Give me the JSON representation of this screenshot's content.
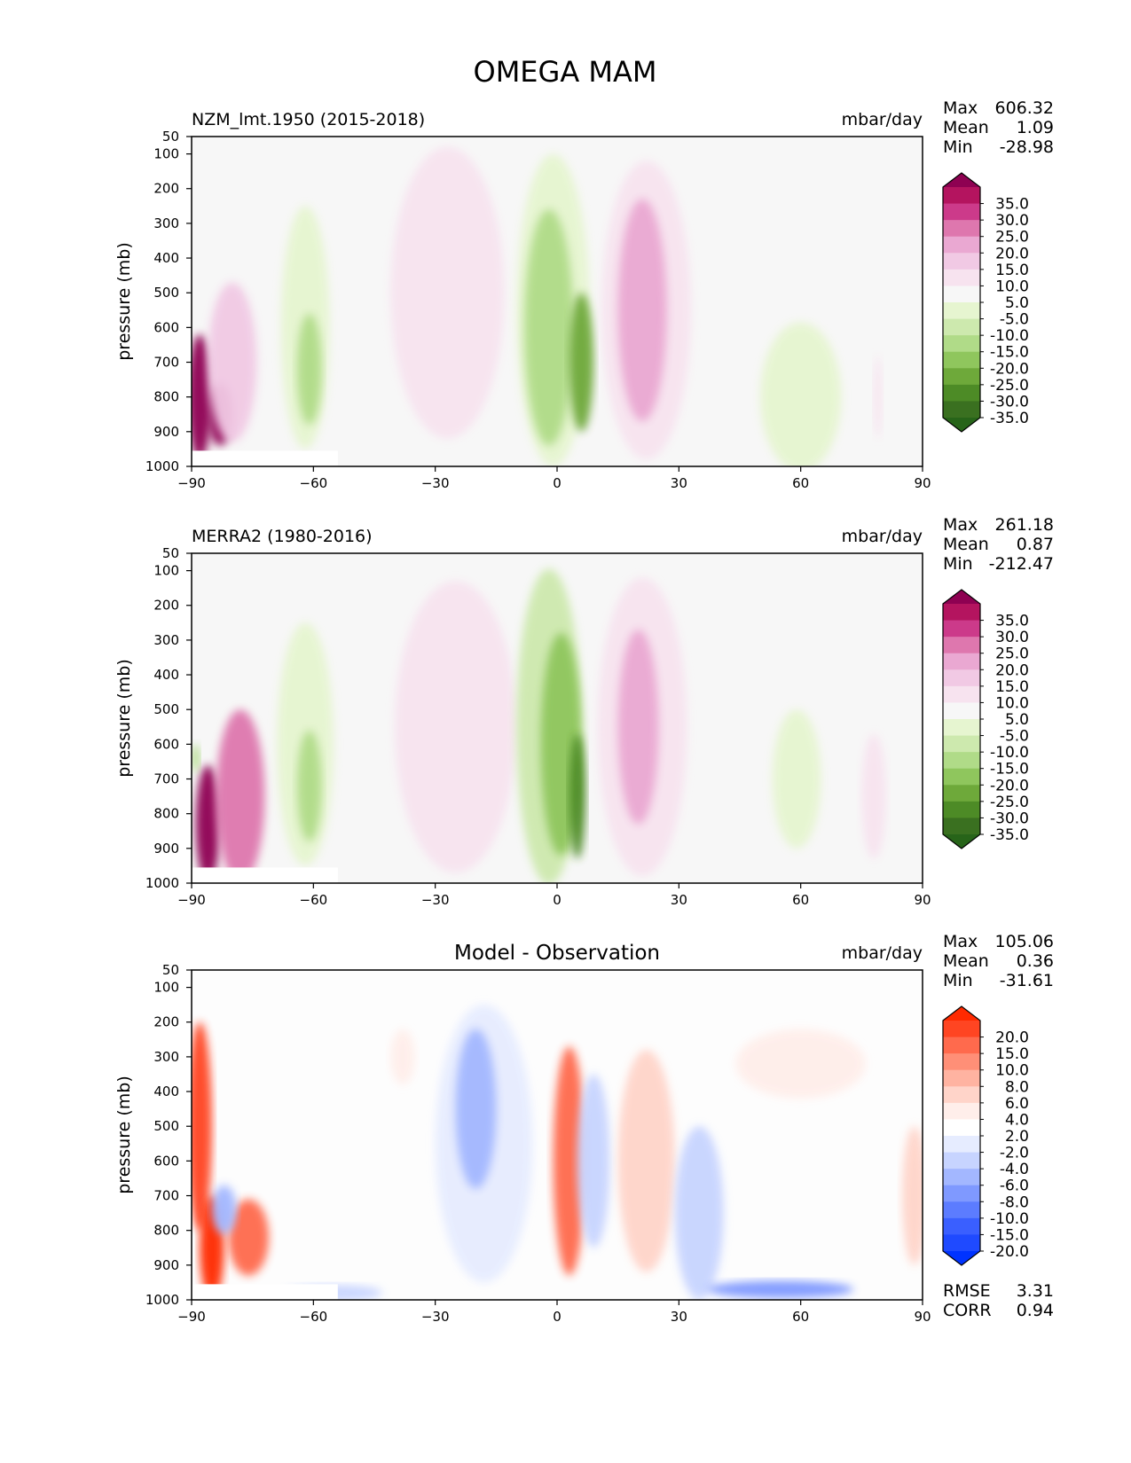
{
  "figure_title": "OMEGA MAM",
  "chart_data": [
    {
      "type": "heatmap",
      "title": "NZM_lmt.1950 (2015-2018)",
      "units": "mbar/day",
      "ylabel": "pressure (mb)",
      "xlim": [
        -90,
        90
      ],
      "ylim": [
        1000,
        50
      ],
      "xticks": [
        "−90",
        "−60",
        "−30",
        "0",
        "30",
        "60",
        "90"
      ],
      "yticks": [
        "50",
        "100",
        "200",
        "300",
        "400",
        "500",
        "600",
        "700",
        "800",
        "900",
        "1000"
      ],
      "stats": {
        "max_label": "Max",
        "max": "606.32",
        "mean_label": "Mean",
        "mean": "1.09",
        "min_label": "Min",
        "min": "-28.98"
      },
      "colorbar": {
        "labels": [
          "35.0",
          "30.0",
          "25.0",
          "20.0",
          "15.0",
          "10.0",
          "5.0",
          "-5.0",
          "-10.0",
          "-15.0",
          "-20.0",
          "-25.0",
          "-30.0",
          "-35.0"
        ],
        "colors": [
          "#8e0152",
          "#b4145f",
          "#cc3a8a",
          "#de77ae",
          "#eaa8d2",
          "#f1c9e4",
          "#f7e3ef",
          "#f7f7f7",
          "#e6f5d0",
          "#cde9ae",
          "#b0db88",
          "#8fc65d",
          "#6ea93a",
          "#4d8b26",
          "#3a7020",
          "#276419"
        ]
      },
      "blobs": [
        {
          "x": -88,
          "y": 800,
          "rx": 3,
          "ry": 180,
          "v": 35
        },
        {
          "x": -83,
          "y": 850,
          "rx": 3,
          "ry": 90,
          "v": 35
        },
        {
          "x": -80,
          "y": 700,
          "rx": 6,
          "ry": 230,
          "v": 10
        },
        {
          "x": -62,
          "y": 600,
          "rx": 6,
          "ry": 350,
          "v": -10
        },
        {
          "x": -61,
          "y": 720,
          "rx": 3,
          "ry": 160,
          "v": -18
        },
        {
          "x": -27,
          "y": 500,
          "rx": 14,
          "ry": 420,
          "v": 8
        },
        {
          "x": -1,
          "y": 550,
          "rx": 9,
          "ry": 450,
          "v": -10
        },
        {
          "x": -2,
          "y": 600,
          "rx": 6,
          "ry": 340,
          "v": -20
        },
        {
          "x": 6,
          "y": 700,
          "rx": 3,
          "ry": 200,
          "v": -30
        },
        {
          "x": 22,
          "y": 550,
          "rx": 11,
          "ry": 430,
          "v": 8
        },
        {
          "x": 21,
          "y": 550,
          "rx": 6,
          "ry": 320,
          "v": 18
        },
        {
          "x": 60,
          "y": 800,
          "rx": 10,
          "ry": 230,
          "v": -6
        },
        {
          "x": 79,
          "y": 800,
          "rx": 1,
          "ry": 120,
          "v": 7
        }
      ]
    },
    {
      "type": "heatmap",
      "title": "MERRA2 (1980-2016)",
      "units": "mbar/day",
      "ylabel": "pressure (mb)",
      "xlim": [
        -90,
        90
      ],
      "ylim": [
        1000,
        50
      ],
      "xticks": [
        "−90",
        "−60",
        "−30",
        "0",
        "30",
        "60",
        "90"
      ],
      "yticks": [
        "50",
        "100",
        "200",
        "300",
        "400",
        "500",
        "600",
        "700",
        "800",
        "900",
        "1000"
      ],
      "stats": {
        "max_label": "Max",
        "max": "261.18",
        "mean_label": "Mean",
        "mean": "0.87",
        "min_label": "Min",
        "min": "-212.47"
      },
      "colorbar": {
        "labels": [
          "35.0",
          "30.0",
          "25.0",
          "20.0",
          "15.0",
          "10.0",
          "5.0",
          "-5.0",
          "-10.0",
          "-15.0",
          "-20.0",
          "-25.0",
          "-30.0",
          "-35.0"
        ],
        "colors": [
          "#8e0152",
          "#b4145f",
          "#cc3a8a",
          "#de77ae",
          "#eaa8d2",
          "#f1c9e4",
          "#f7e3ef",
          "#f7f7f7",
          "#e6f5d0",
          "#cde9ae",
          "#b0db88",
          "#8fc65d",
          "#6ea93a",
          "#4d8b26",
          "#3a7020",
          "#276419"
        ]
      },
      "blobs": [
        {
          "x": -86,
          "y": 830,
          "rx": 3,
          "ry": 170,
          "v": 35
        },
        {
          "x": -78,
          "y": 750,
          "rx": 6,
          "ry": 250,
          "v": 20
        },
        {
          "x": -89,
          "y": 640,
          "rx": 1,
          "ry": 40,
          "v": -20
        },
        {
          "x": -62,
          "y": 600,
          "rx": 7,
          "ry": 350,
          "v": -10
        },
        {
          "x": -61,
          "y": 720,
          "rx": 3,
          "ry": 160,
          "v": -20
        },
        {
          "x": -25,
          "y": 550,
          "rx": 15,
          "ry": 420,
          "v": 8
        },
        {
          "x": -2,
          "y": 550,
          "rx": 8,
          "ry": 460,
          "v": -12
        },
        {
          "x": 1,
          "y": 600,
          "rx": 5,
          "ry": 320,
          "v": -22
        },
        {
          "x": 5,
          "y": 750,
          "rx": 2,
          "ry": 180,
          "v": -32
        },
        {
          "x": 21,
          "y": 550,
          "rx": 11,
          "ry": 430,
          "v": 8
        },
        {
          "x": 20,
          "y": 550,
          "rx": 5,
          "ry": 280,
          "v": 18
        },
        {
          "x": 59,
          "y": 700,
          "rx": 6,
          "ry": 200,
          "v": -6
        },
        {
          "x": 78,
          "y": 750,
          "rx": 3,
          "ry": 180,
          "v": 6
        }
      ]
    },
    {
      "type": "heatmap",
      "title": "Model - Observation",
      "units": "mbar/day",
      "ylabel": "pressure (mb)",
      "xlim": [
        -90,
        90
      ],
      "ylim": [
        1000,
        50
      ],
      "xticks": [
        "−90",
        "−60",
        "−30",
        "0",
        "30",
        "60",
        "90"
      ],
      "yticks": [
        "50",
        "100",
        "200",
        "300",
        "400",
        "500",
        "600",
        "700",
        "800",
        "900",
        "1000"
      ],
      "stats": {
        "max_label": "Max",
        "max": "105.06",
        "mean_label": "Mean",
        "mean": "0.36",
        "min_label": "Min",
        "min": "-31.61"
      },
      "metrics": {
        "rmse_label": "RMSE",
        "rmse": "3.31",
        "corr_label": "CORR",
        "corr": "0.94"
      },
      "colorbar": {
        "labels": [
          "20.0",
          "15.0",
          "10.0",
          "8.0",
          "6.0",
          "4.0",
          "2.0",
          "-2.0",
          "-4.0",
          "-6.0",
          "-8.0",
          "-10.0",
          "-15.0",
          "-20.0"
        ],
        "colors": [
          "#ff2a00",
          "#ff4522",
          "#ff6a4d",
          "#ff8f77",
          "#ffb3a1",
          "#ffd4c9",
          "#ffeeea",
          "#ffffff",
          "#e6ecff",
          "#c7d4ff",
          "#a3b7ff",
          "#7f99ff",
          "#5c7cff",
          "#3a5fff",
          "#1f4aff",
          "#0033ff"
        ]
      },
      "blobs": [
        {
          "x": -88,
          "y": 500,
          "rx": 3,
          "ry": 300,
          "v": 15
        },
        {
          "x": -85,
          "y": 850,
          "rx": 3,
          "ry": 150,
          "v": 20
        },
        {
          "x": -76,
          "y": 820,
          "rx": 5,
          "ry": 110,
          "v": 14
        },
        {
          "x": -82,
          "y": 740,
          "rx": 3,
          "ry": 70,
          "v": -8
        },
        {
          "x": -18,
          "y": 550,
          "rx": 12,
          "ry": 400,
          "v": -4
        },
        {
          "x": -20,
          "y": 450,
          "rx": 5,
          "ry": 230,
          "v": -7
        },
        {
          "x": 3,
          "y": 600,
          "rx": 4,
          "ry": 330,
          "v": 10
        },
        {
          "x": 9,
          "y": 600,
          "rx": 4,
          "ry": 250,
          "v": -5
        },
        {
          "x": 22,
          "y": 600,
          "rx": 7,
          "ry": 320,
          "v": 5
        },
        {
          "x": 35,
          "y": 750,
          "rx": 6,
          "ry": 250,
          "v": -5
        },
        {
          "x": 55,
          "y": 970,
          "rx": 18,
          "ry": 25,
          "v": -10
        },
        {
          "x": 60,
          "y": 320,
          "rx": 16,
          "ry": 100,
          "v": 3
        },
        {
          "x": 88,
          "y": 700,
          "rx": 3,
          "ry": 200,
          "v": 4
        },
        {
          "x": -55,
          "y": 980,
          "rx": 12,
          "ry": 25,
          "v": -6
        },
        {
          "x": -38,
          "y": 300,
          "rx": 3,
          "ry": 80,
          "v": 3
        }
      ]
    }
  ]
}
